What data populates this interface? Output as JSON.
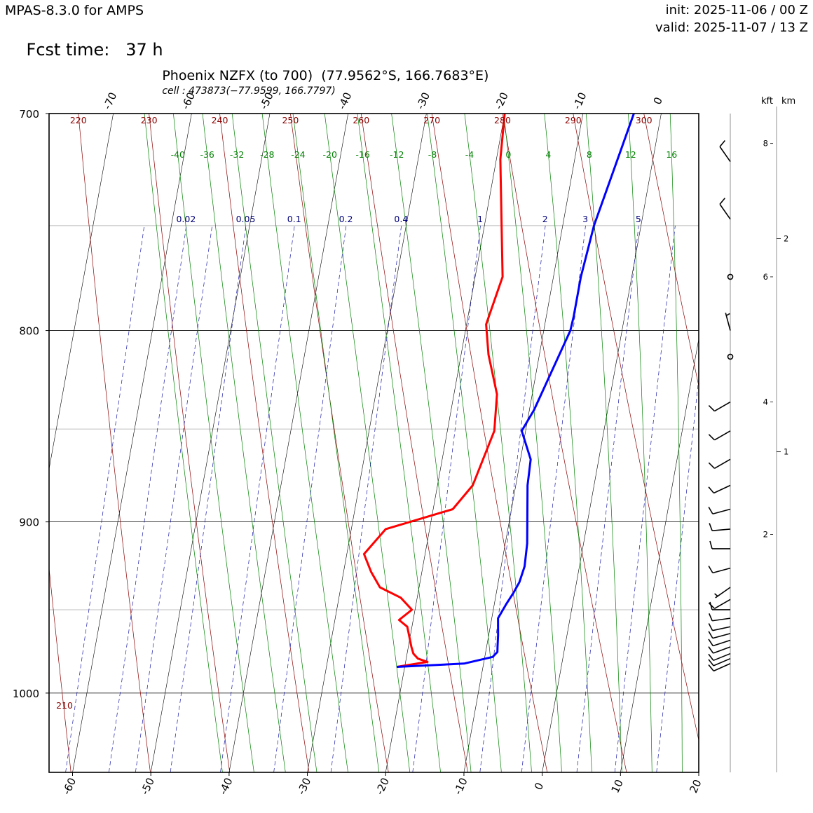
{
  "header": {
    "model": "MPAS-8.3.0 for AMPS",
    "fcst_label": "Fcst time:",
    "fcst_value": "37 h",
    "init": "init: 2025-11-06 / 00 Z",
    "valid": "valid: 2025-11-07 / 13 Z"
  },
  "chart_data": {
    "type": "line",
    "chart_kind": "skew-T log-p sounding",
    "title": "Phoenix NZFX (to 700)  (77.9562°S, 166.7683°E)",
    "title_cell": "cell : 473873(−77.9599, 166.7797)",
    "xlim": [
      -63,
      20
    ],
    "pressure_range": [
      1050,
      700
    ],
    "pressure_ticks": [
      "700",
      "800",
      "900",
      "1000"
    ],
    "pressure_tick_values": [
      700,
      800,
      900,
      1000
    ],
    "minor_pressure_lines": [
      750,
      850,
      950
    ],
    "bottom_temp_ticks": [
      "-60",
      "-50",
      "-40",
      "-30",
      "-20",
      "-10",
      "0",
      "10",
      "20"
    ],
    "bottom_temp_values": [
      -60,
      -50,
      -40,
      -30,
      -20,
      -10,
      0,
      10,
      20
    ],
    "top_temp_ticks": [
      "-70",
      "-60",
      "-50",
      "-40",
      "-30",
      "-20",
      "-10",
      "0"
    ],
    "top_temp_values": [
      -70,
      -60,
      -50,
      -40,
      -30,
      -20,
      -10,
      0
    ],
    "dry_adiabat_labels": [
      "220",
      "230",
      "240",
      "250",
      "260",
      "270",
      "280",
      "290",
      "300"
    ],
    "dry_adiabat_values": [
      220,
      230,
      240,
      250,
      260,
      270,
      280,
      290,
      300
    ],
    "dry_adiabat_bottom_label": "210",
    "dry_adiabats_all": [
      200,
      210,
      220,
      230,
      240,
      250,
      260,
      270,
      280,
      290,
      300,
      310,
      320
    ],
    "moist_adiabat_labels": [
      "-40",
      "-36",
      "-32",
      "-28",
      "-24",
      "-20",
      "-16",
      "-12",
      "-8",
      "-4",
      "0",
      "4",
      "8",
      "12",
      "16"
    ],
    "moist_adiabat_values": [
      -40,
      -36,
      -32,
      -28,
      -24,
      -20,
      -16,
      -12,
      -8,
      -4,
      0,
      4,
      8,
      12,
      16
    ],
    "mixing_ratio_labels": [
      "0.02",
      "0.05",
      "0.1",
      "0.2",
      "0.4",
      "1",
      "2",
      "3",
      "5"
    ],
    "mixing_ratio_values": [
      0.02,
      0.05,
      0.1,
      0.2,
      0.4,
      1,
      2,
      3,
      5
    ],
    "mixing_ratio_extra_lines": [
      0.01,
      0.03,
      7,
      10,
      15
    ],
    "series": [
      {
        "kind": "temperature",
        "color": "#ff0000",
        "p": [
          984,
          981,
          979,
          976,
          972,
          966,
          960,
          956,
          950,
          943,
          937,
          928,
          918,
          904,
          893,
          880,
          851,
          832,
          812,
          797,
          774,
          720,
          700
        ],
        "t": [
          -21.0,
          -17.2,
          -18.5,
          -19.2,
          -19.6,
          -20.1,
          -20.6,
          -21.8,
          -20.4,
          -22.1,
          -25.0,
          -26.5,
          -27.8,
          -25.6,
          -17.5,
          -15.5,
          -14.0,
          -14.5,
          -16.5,
          -17.5,
          -16.5,
          -19.5,
          -20.0
        ]
      },
      {
        "kind": "dewpoint",
        "color": "#0000ff",
        "p": [
          984,
          982,
          978,
          975,
          972,
          965,
          955,
          947,
          940,
          934,
          925,
          912,
          880,
          866,
          851,
          840,
          800,
          793,
          774,
          750,
          700
        ],
        "t": [
          -21.0,
          -12.5,
          -9.0,
          -8.5,
          -8.6,
          -8.8,
          -9.2,
          -8.5,
          -7.8,
          -7.3,
          -7.0,
          -7.2,
          -8.5,
          -8.7,
          -10.5,
          -9.4,
          -6.6,
          -6.5,
          -6.5,
          -6.0,
          -3.5
        ]
      }
    ],
    "wind_barbs": [
      {
        "p": 721,
        "dir": 325,
        "speed": 10
      },
      {
        "p": 747,
        "dir": 325,
        "speed": 10
      },
      {
        "p": 774,
        "dir": 0,
        "speed": 0
      },
      {
        "p": 800,
        "dir": 345,
        "speed": 5
      },
      {
        "p": 813,
        "dir": 0,
        "speed": 0
      },
      {
        "p": 836,
        "dir": 240,
        "speed": 10
      },
      {
        "p": 851,
        "dir": 240,
        "speed": 10
      },
      {
        "p": 866,
        "dir": 240,
        "speed": 10
      },
      {
        "p": 880,
        "dir": 245,
        "speed": 10
      },
      {
        "p": 893,
        "dir": 255,
        "speed": 10
      },
      {
        "p": 904,
        "dir": 265,
        "speed": 10
      },
      {
        "p": 915,
        "dir": 270,
        "speed": 10
      },
      {
        "p": 926,
        "dir": 255,
        "speed": 10
      },
      {
        "p": 937,
        "dir": 235,
        "speed": 5
      },
      {
        "p": 944,
        "dir": 240,
        "speed": 10
      },
      {
        "p": 950,
        "dir": 270,
        "speed": 10
      },
      {
        "p": 955,
        "dir": 262,
        "speed": 10
      },
      {
        "p": 960,
        "dir": 258,
        "speed": 10
      },
      {
        "p": 964,
        "dir": 255,
        "speed": 10
      },
      {
        "p": 968,
        "dir": 252,
        "speed": 10
      },
      {
        "p": 972,
        "dir": 250,
        "speed": 10
      },
      {
        "p": 976,
        "dir": 248,
        "speed": 10
      },
      {
        "p": 979,
        "dir": 247,
        "speed": 10
      },
      {
        "p": 982,
        "dir": 246,
        "speed": 10
      }
    ],
    "height_axis": {
      "kft_label": "kft",
      "km_label": "km",
      "kft_ticks": [
        {
          "p": 713,
          "label": "8"
        },
        {
          "p": 774,
          "label": "6"
        },
        {
          "p": 836,
          "label": "4"
        },
        {
          "p": 907,
          "label": "2"
        }
      ],
      "km_ticks": [
        {
          "p": 756,
          "label": "2"
        },
        {
          "p": 862,
          "label": "1"
        }
      ]
    }
  }
}
